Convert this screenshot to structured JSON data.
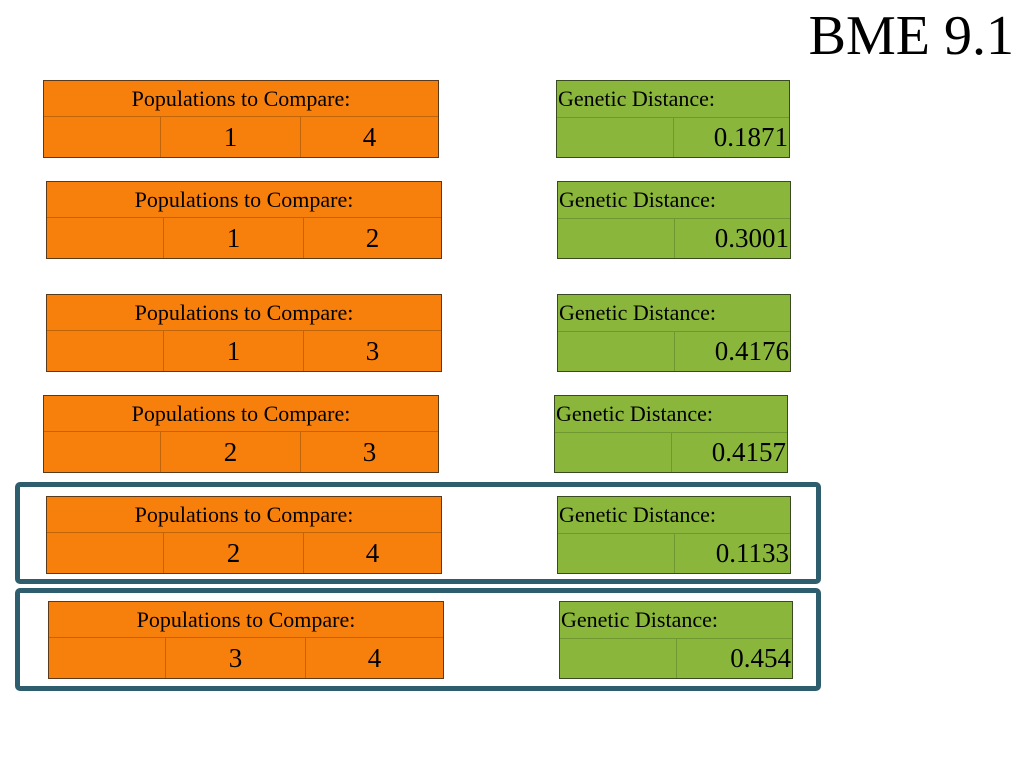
{
  "slide": {
    "title": "BME 9.1"
  },
  "comparisons": [
    {
      "label": "Populations to Compare:",
      "pop_a": "1",
      "pop_b": "4",
      "distance_label": "Genetic Distance:",
      "distance": "0.1871"
    },
    {
      "label": "Populations to Compare:",
      "pop_a": "1",
      "pop_b": "2",
      "distance_label": "Genetic Distance:",
      "distance": "0.3001"
    },
    {
      "label": "Populations to Compare:",
      "pop_a": "1",
      "pop_b": "3",
      "distance_label": "Genetic Distance:",
      "distance": "0.4176"
    },
    {
      "label": "Populations to Compare:",
      "pop_a": "2",
      "pop_b": "3",
      "distance_label": "Genetic Distance:",
      "distance": "0.4157"
    },
    {
      "label": "Populations to Compare:",
      "pop_a": "2",
      "pop_b": "4",
      "distance_label": "Genetic Distance:",
      "distance": "0.1133"
    },
    {
      "label": "Populations to Compare:",
      "pop_a": "3",
      "pop_b": "4",
      "distance_label": "Genetic Distance:",
      "distance": "0.454"
    }
  ],
  "colors": {
    "populations_fill": "#f77f0c",
    "distance_fill": "#8ab63c",
    "highlight_border": "#2e5d6e"
  }
}
